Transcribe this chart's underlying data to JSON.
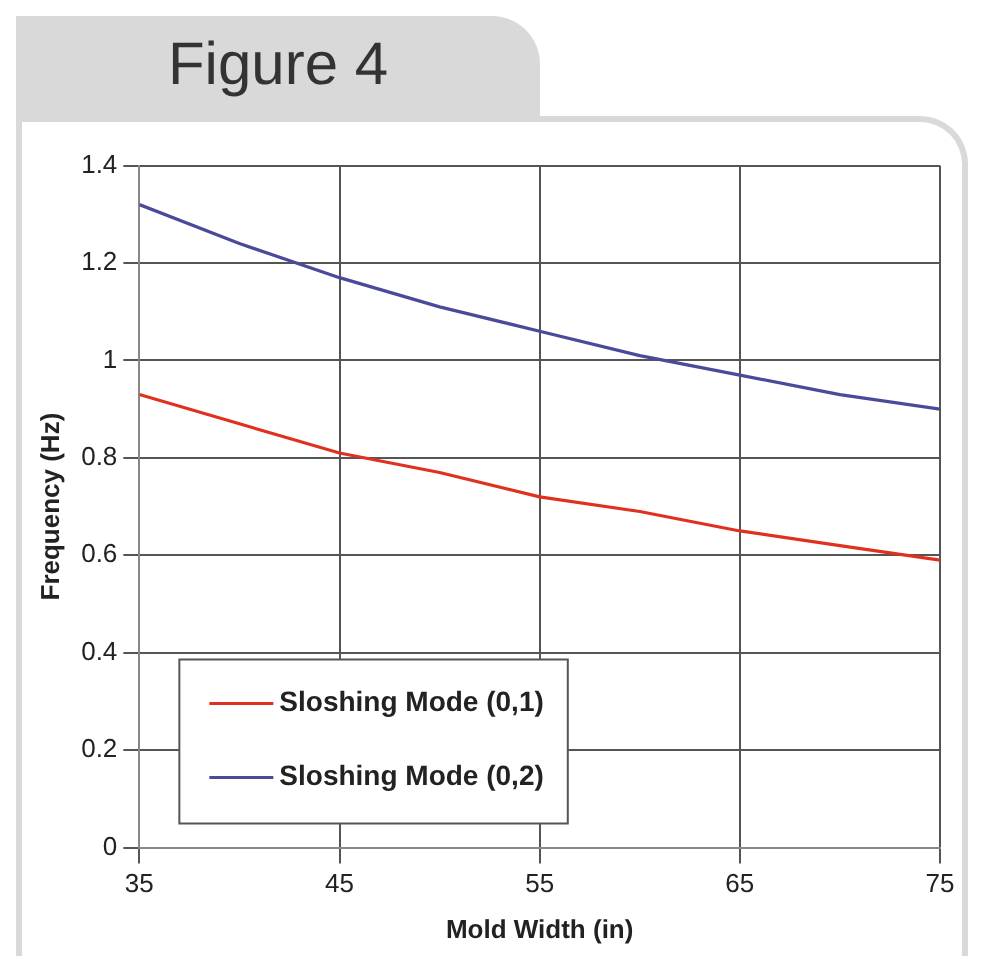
{
  "chart_data": {
    "type": "line",
    "title": "Figure 4",
    "xlabel": "Mold Width (in)",
    "ylabel": "Frequency (Hz)",
    "x": [
      35,
      40,
      45,
      50,
      55,
      60,
      65,
      70,
      75
    ],
    "series": [
      {
        "name": "Sloshing Mode (0,1)",
        "color": "#e03020",
        "values": [
          0.93,
          0.87,
          0.81,
          0.77,
          0.72,
          0.69,
          0.65,
          0.62,
          0.59
        ]
      },
      {
        "name": "Sloshing Mode (0,2)",
        "color": "#4a4a9a",
        "values": [
          1.32,
          1.24,
          1.17,
          1.11,
          1.06,
          1.01,
          0.97,
          0.93,
          0.9
        ]
      }
    ],
    "xlim": [
      35,
      75
    ],
    "xticks": [
      35,
      45,
      55,
      65,
      75
    ],
    "ylim": [
      0,
      1.4
    ],
    "yticks": [
      0,
      0.2,
      0.4,
      0.6,
      0.8,
      1,
      1.2,
      1.4
    ],
    "grid": true,
    "legend": "bottom left",
    "marker": "none",
    "line_style": "solid"
  }
}
